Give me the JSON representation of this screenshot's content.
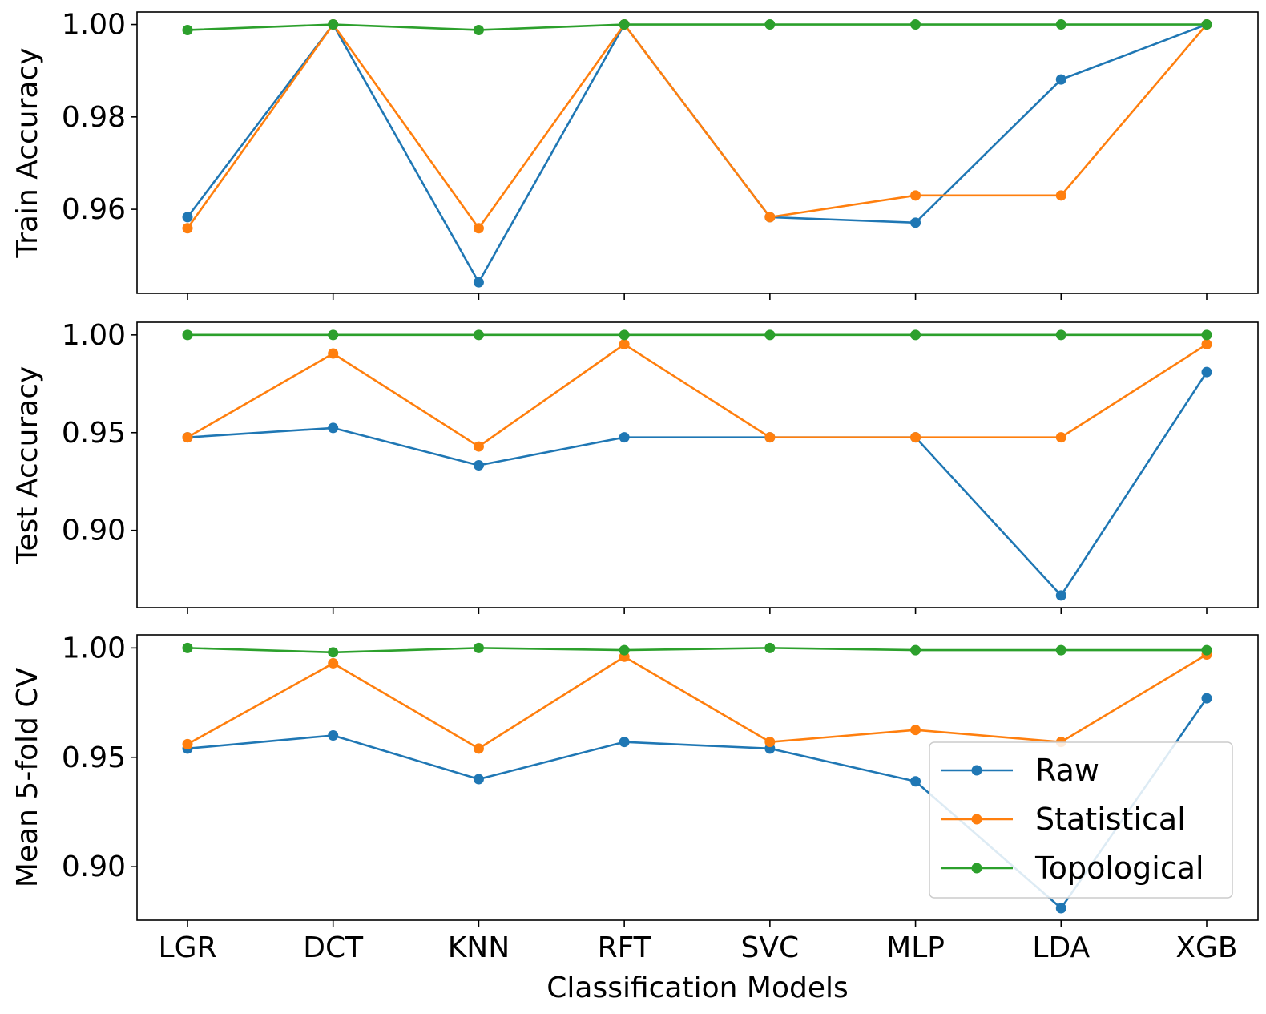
{
  "chart_data": [
    {
      "type": "line",
      "ylabel": "Train Accuracy",
      "xlabel": "",
      "ylim": [
        0.9418,
        1.0027
      ],
      "yticks": [
        "0.96",
        "0.98",
        "1.00"
      ],
      "categories": [
        "LGR",
        "DCT",
        "KNN",
        "RFT",
        "SVC",
        "MLP",
        "LDA",
        "XGB"
      ],
      "series": [
        {
          "name": "Raw",
          "color": "#1f77b4",
          "values": [
            0.9583,
            1.0,
            0.9442,
            1.0,
            0.9583,
            0.9571,
            0.9881,
            1.0
          ]
        },
        {
          "name": "Statistical",
          "color": "#ff7f0e",
          "values": [
            0.9559,
            1.0,
            0.9559,
            1.0,
            0.9583,
            0.963,
            0.963,
            1.0
          ]
        },
        {
          "name": "Topological",
          "color": "#2ca02c",
          "values": [
            0.9988,
            1.0,
            0.9988,
            1.0,
            1.0,
            1.0,
            1.0,
            1.0
          ]
        }
      ]
    },
    {
      "type": "line",
      "ylabel": "Test Accuracy",
      "xlabel": "",
      "ylim": [
        0.8605,
        1.0065
      ],
      "yticks": [
        "0.90",
        "0.95",
        "1.00"
      ],
      "categories": [
        "LGR",
        "DCT",
        "KNN",
        "RFT",
        "SVC",
        "MLP",
        "LDA",
        "XGB"
      ],
      "series": [
        {
          "name": "Raw",
          "color": "#1f77b4",
          "values": [
            0.9476,
            0.9524,
            0.9333,
            0.9476,
            0.9476,
            0.9476,
            0.8667,
            0.981
          ]
        },
        {
          "name": "Statistical",
          "color": "#ff7f0e",
          "values": [
            0.9476,
            0.9905,
            0.9429,
            0.9952,
            0.9476,
            0.9476,
            0.9476,
            0.9952
          ]
        },
        {
          "name": "Topological",
          "color": "#2ca02c",
          "values": [
            1.0,
            1.0,
            1.0,
            1.0,
            1.0,
            1.0,
            1.0,
            1.0
          ]
        }
      ]
    },
    {
      "type": "line",
      "ylabel": "Mean 5-fold CV",
      "xlabel": "Classification Models",
      "ylim": [
        0.8755,
        1.006
      ],
      "yticks": [
        "0.90",
        "0.95",
        "1.00"
      ],
      "categories": [
        "LGR",
        "DCT",
        "KNN",
        "RFT",
        "SVC",
        "MLP",
        "LDA",
        "XGB"
      ],
      "series": [
        {
          "name": "Raw",
          "color": "#1f77b4",
          "values": [
            0.954,
            0.96,
            0.94,
            0.957,
            0.954,
            0.939,
            0.881,
            0.977
          ]
        },
        {
          "name": "Statistical",
          "color": "#ff7f0e",
          "values": [
            0.956,
            0.993,
            0.954,
            0.996,
            0.957,
            0.9625,
            0.957,
            0.997
          ]
        },
        {
          "name": "Topological",
          "color": "#2ca02c",
          "values": [
            1.0,
            0.998,
            1.0,
            0.999,
            1.0,
            0.999,
            0.999,
            0.999
          ]
        }
      ],
      "legend": {
        "position": "lower-right",
        "entries": [
          "Raw",
          "Statistical",
          "Topological"
        ]
      }
    }
  ]
}
